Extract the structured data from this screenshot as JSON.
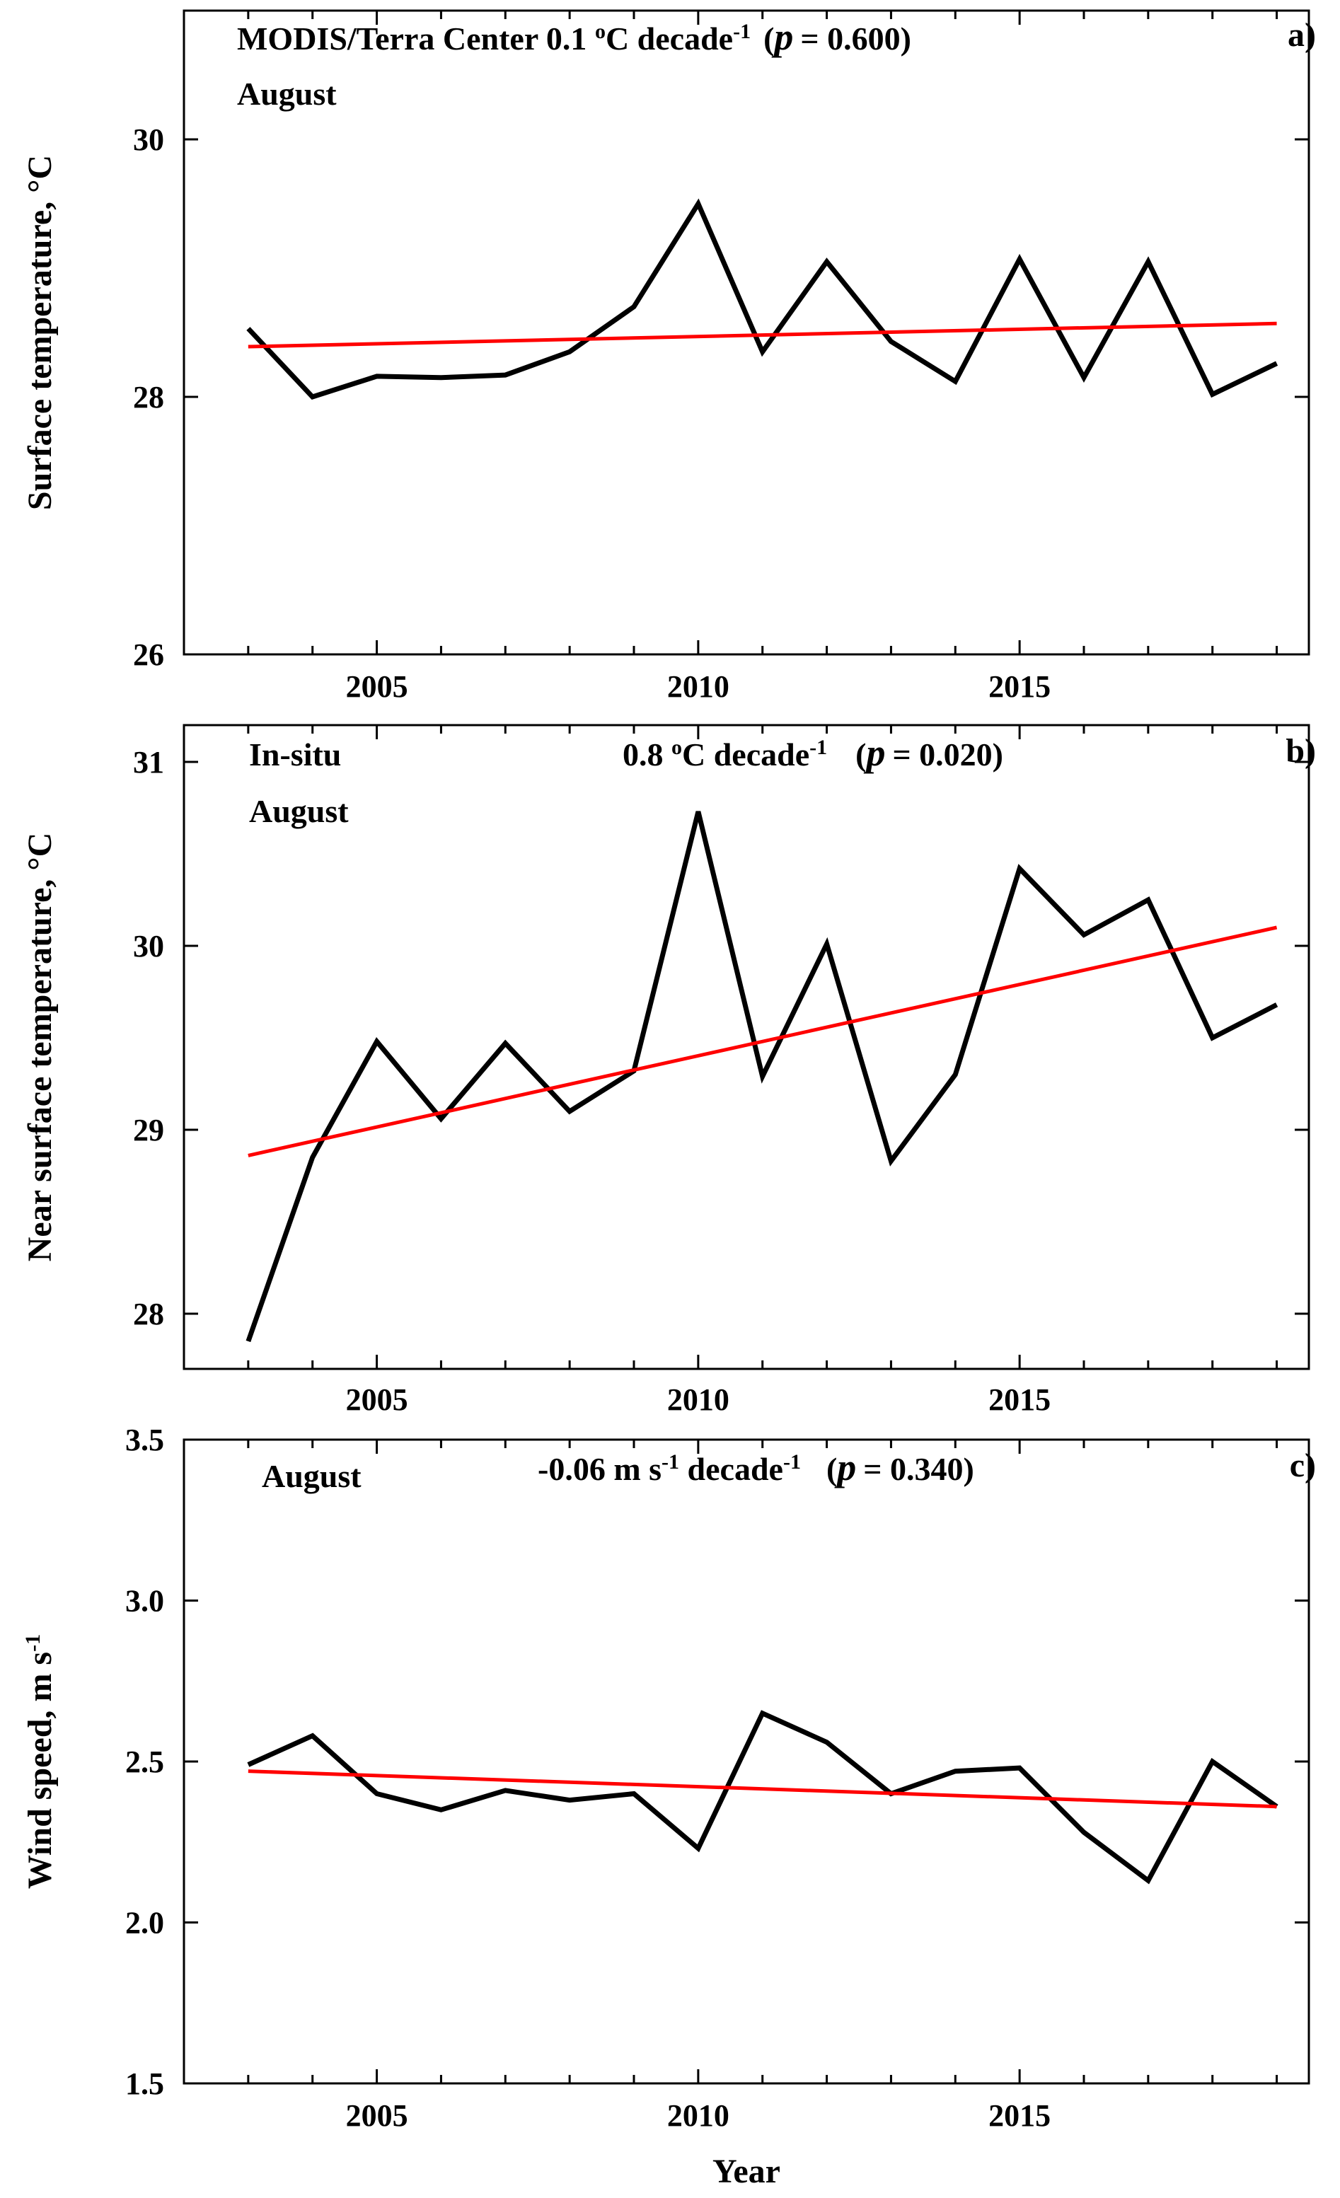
{
  "chart_data": [
    {
      "type": "line",
      "panel": "a)",
      "title": "MODIS/Terra Center",
      "trend_value": "0.1",
      "trend_unit": "°C decade",
      "trend_unit_sup": "-1",
      "p_label": "p",
      "p_value": "= 0.600)",
      "p_open": "(",
      "month": "August",
      "xlabel": "",
      "ylabel": "Surface temperature, °C",
      "xlim": [
        2002.0,
        2019.5
      ],
      "ylim": [
        26,
        31
      ],
      "x_ticks": [
        2005,
        2010,
        2015
      ],
      "y_ticks": [
        26,
        28,
        30
      ],
      "series": [
        {
          "name": "MODIS/Terra Center",
          "color": "#000000",
          "x": [
            2003,
            2004,
            2005,
            2006,
            2007,
            2008,
            2009,
            2010,
            2011,
            2012,
            2013,
            2014,
            2015,
            2016,
            2017,
            2018,
            2019
          ],
          "values": [
            28.53,
            28.0,
            28.16,
            28.15,
            28.17,
            28.35,
            28.7,
            29.5,
            28.35,
            29.05,
            28.43,
            28.12,
            29.07,
            28.15,
            29.05,
            28.02,
            28.26
          ]
        },
        {
          "name": "Linear trend",
          "color": "#ff0000",
          "x": [
            2003,
            2019
          ],
          "values": [
            28.39,
            28.57
          ]
        }
      ]
    },
    {
      "type": "line",
      "panel": "b)",
      "title": "In-situ",
      "trend_value": "0.8",
      "trend_unit": "°C decade",
      "trend_unit_sup": "-1",
      "p_label": "p",
      "p_value": "= 0.020)",
      "p_open": "(",
      "month": "August",
      "xlabel": "",
      "ylabel": "Near surface temperature, °C",
      "xlim": [
        2002.0,
        2019.5
      ],
      "ylim": [
        27.7,
        31.2
      ],
      "x_ticks": [
        2005,
        2010,
        2015
      ],
      "y_ticks": [
        28,
        29,
        30,
        31
      ],
      "series": [
        {
          "name": "In-situ",
          "color": "#000000",
          "x": [
            2003,
            2004,
            2005,
            2006,
            2007,
            2008,
            2009,
            2010,
            2011,
            2012,
            2013,
            2014,
            2015,
            2016,
            2017,
            2018,
            2019
          ],
          "values": [
            27.85,
            28.85,
            29.48,
            29.06,
            29.47,
            29.1,
            29.32,
            30.73,
            29.29,
            30.01,
            28.83,
            29.3,
            30.42,
            30.06,
            30.25,
            29.5,
            29.68
          ]
        },
        {
          "name": "Linear trend",
          "color": "#ff0000",
          "x": [
            2003,
            2019
          ],
          "values": [
            28.86,
            30.1
          ]
        }
      ]
    },
    {
      "type": "line",
      "panel": "c)",
      "title": "",
      "trend_value": "-0.06",
      "trend_unit": "m s",
      "trend_unit_sup": "-1",
      "trend_unit2": "decade",
      "trend_unit2_sup": "-1",
      "p_label": "p",
      "p_value": "= 0.340)",
      "p_open": "(",
      "month": "August",
      "xlabel": "Year",
      "ylabel": "Wind speed, m s",
      "ylabel_sup": "-1",
      "xlim": [
        2002.0,
        2019.5
      ],
      "ylim": [
        1.5,
        3.5
      ],
      "x_ticks": [
        2005,
        2010,
        2015
      ],
      "y_ticks": [
        1.5,
        2.0,
        2.5,
        3.0,
        3.5
      ],
      "y_tick_labels": [
        "1.5",
        "2.0",
        "2.5",
        "3.0",
        "3.5"
      ],
      "series": [
        {
          "name": "Wind speed",
          "color": "#000000",
          "x": [
            2003,
            2004,
            2005,
            2006,
            2007,
            2008,
            2009,
            2010,
            2011,
            2012,
            2013,
            2014,
            2015,
            2016,
            2017,
            2018,
            2019
          ],
          "values": [
            2.49,
            2.58,
            2.4,
            2.35,
            2.41,
            2.38,
            2.4,
            2.23,
            2.65,
            2.56,
            2.4,
            2.47,
            2.48,
            2.28,
            2.13,
            2.5,
            2.36
          ]
        },
        {
          "name": "Linear trend",
          "color": "#ff0000",
          "x": [
            2003,
            2019
          ],
          "values": [
            2.47,
            2.36
          ]
        }
      ]
    }
  ]
}
